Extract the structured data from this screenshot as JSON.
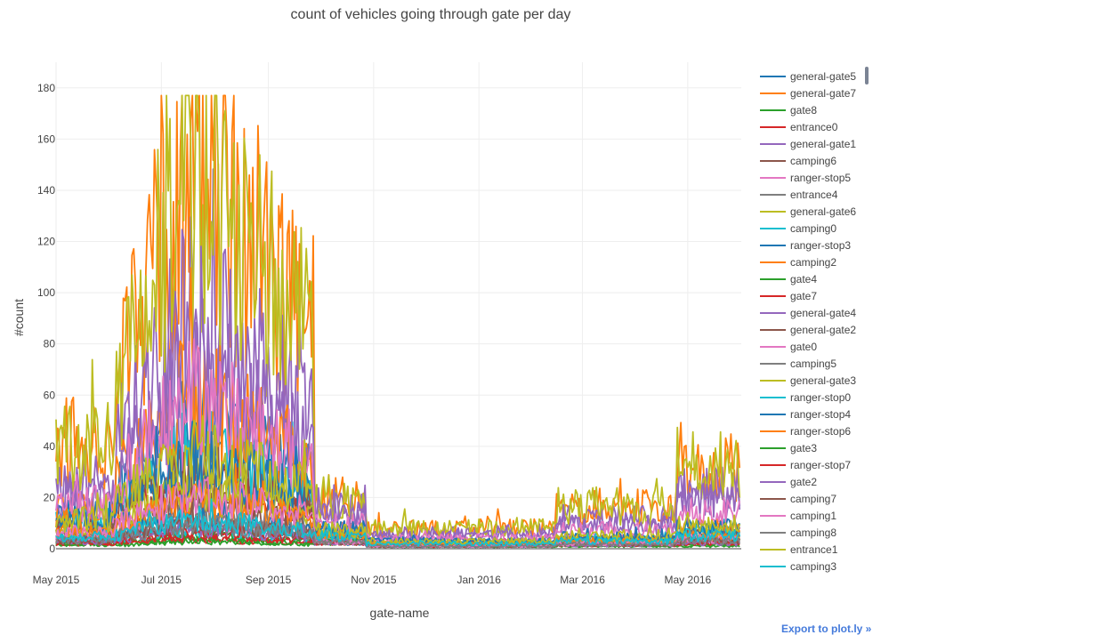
{
  "chart_data": {
    "type": "line",
    "title": "count of vehicles going through gate per day",
    "xlabel": "gate-name",
    "ylabel": "#count",
    "x_range": [
      "2015-05-01",
      "2016-06-01"
    ],
    "ylim": [
      0,
      190
    ],
    "x_ticks": [
      {
        "date": "2015-05-01",
        "label": "May 2015"
      },
      {
        "date": "2015-07-01",
        "label": "Jul 2015"
      },
      {
        "date": "2015-09-01",
        "label": "Sep 2015"
      },
      {
        "date": "2015-11-01",
        "label": "Nov 2015"
      },
      {
        "date": "2016-01-01",
        "label": "Jan 2016"
      },
      {
        "date": "2016-03-01",
        "label": "Mar 2016"
      },
      {
        "date": "2016-05-01",
        "label": "May 2016"
      }
    ],
    "y_ticks": [
      0,
      20,
      40,
      60,
      80,
      100,
      120,
      140,
      160,
      180
    ],
    "grid": true,
    "legend_position": "right",
    "series": [
      {
        "name": "general-gate5",
        "color": "#1f77b4",
        "peak": 50,
        "winter": 3,
        "spring": 6
      },
      {
        "name": "general-gate7",
        "color": "#ff7f0e",
        "peak": 150,
        "winter": 8,
        "spring": 32
      },
      {
        "name": "gate8",
        "color": "#2ca02c",
        "peak": 5,
        "winter": 1,
        "spring": 2
      },
      {
        "name": "entrance0",
        "color": "#d62728",
        "peak": 25,
        "winter": 2,
        "spring": 6
      },
      {
        "name": "general-gate1",
        "color": "#9467bd",
        "peak": 95,
        "winter": 6,
        "spring": 22
      },
      {
        "name": "camping6",
        "color": "#8c564b",
        "peak": 18,
        "winter": 1,
        "spring": 4
      },
      {
        "name": "ranger-stop5",
        "color": "#e377c2",
        "peak": 10,
        "winter": 1,
        "spring": 3
      },
      {
        "name": "entrance4",
        "color": "#7f7f7f",
        "peak": 15,
        "winter": 2,
        "spring": 4
      },
      {
        "name": "general-gate6",
        "color": "#bcbd22",
        "peak": 145,
        "winter": 8,
        "spring": 33
      },
      {
        "name": "camping0",
        "color": "#17becf",
        "peak": 40,
        "winter": 2,
        "spring": 6
      },
      {
        "name": "ranger-stop3",
        "color": "#1f77b4",
        "peak": 12,
        "winter": 1,
        "spring": 3
      },
      {
        "name": "camping2",
        "color": "#ff7f0e",
        "peak": 60,
        "winter": 2,
        "spring": 8
      },
      {
        "name": "gate4",
        "color": "#2ca02c",
        "peak": 4,
        "winter": 1,
        "spring": 2
      },
      {
        "name": "gate7",
        "color": "#d62728",
        "peak": 4,
        "winter": 1,
        "spring": 2
      },
      {
        "name": "general-gate4",
        "color": "#9467bd",
        "peak": 70,
        "winter": 5,
        "spring": 18
      },
      {
        "name": "general-gate2",
        "color": "#8c564b",
        "peak": 30,
        "winter": 2,
        "spring": 6
      },
      {
        "name": "gate0",
        "color": "#e377c2",
        "peak": 60,
        "winter": 4,
        "spring": 14
      },
      {
        "name": "camping5",
        "color": "#7f7f7f",
        "peak": 12,
        "winter": 1,
        "spring": 3
      },
      {
        "name": "general-gate3",
        "color": "#bcbd22",
        "peak": 25,
        "winter": 2,
        "spring": 5
      },
      {
        "name": "ranger-stop0",
        "color": "#17becf",
        "peak": 8,
        "winter": 2,
        "spring": 6
      },
      {
        "name": "ranger-stop4",
        "color": "#1f77b4",
        "peak": 35,
        "winter": 3,
        "spring": 8
      },
      {
        "name": "ranger-stop6",
        "color": "#ff7f0e",
        "peak": 20,
        "winter": 2,
        "spring": 5
      },
      {
        "name": "gate3",
        "color": "#2ca02c",
        "peak": 3,
        "winter": 1,
        "spring": 1
      },
      {
        "name": "ranger-stop7",
        "color": "#d62728",
        "peak": 6,
        "winter": 1,
        "spring": 2
      },
      {
        "name": "gate2",
        "color": "#9467bd",
        "peak": 8,
        "winter": 1,
        "spring": 2
      },
      {
        "name": "camping7",
        "color": "#8c564b",
        "peak": 10,
        "winter": 1,
        "spring": 3
      },
      {
        "name": "camping1",
        "color": "#e377c2",
        "peak": 22,
        "winter": 1,
        "spring": 4
      },
      {
        "name": "camping8",
        "color": "#7f7f7f",
        "peak": 10,
        "winter": 1,
        "spring": 3
      },
      {
        "name": "entrance1",
        "color": "#bcbd22",
        "peak": 40,
        "winter": 3,
        "spring": 9
      },
      {
        "name": "camping3",
        "color": "#17becf",
        "peak": 12,
        "winter": 2,
        "spring": 5
      }
    ]
  },
  "export_link": "Export to plot.ly »"
}
